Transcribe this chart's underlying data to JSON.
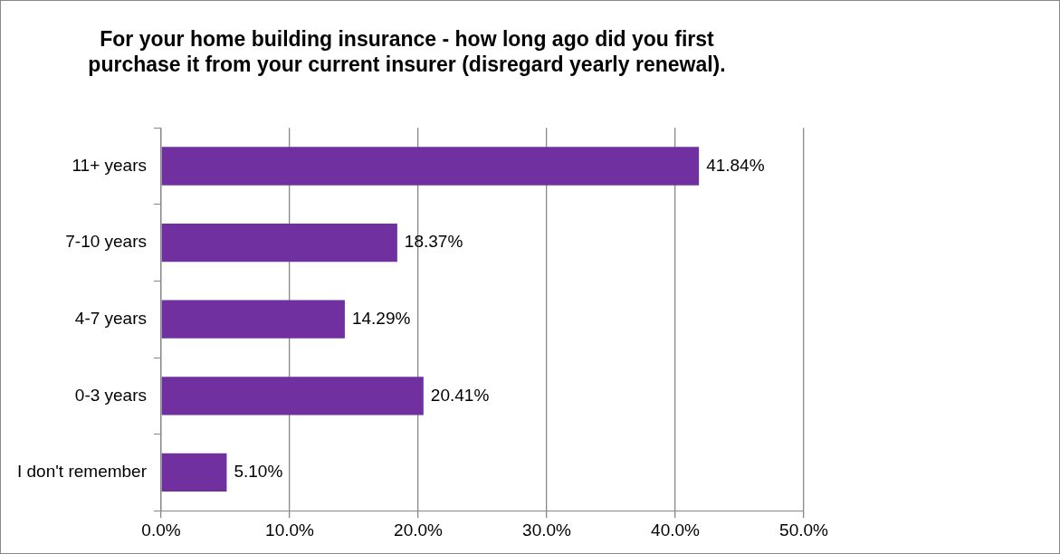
{
  "chart_data": {
    "type": "bar",
    "orientation": "horizontal",
    "title": "For your home building insurance - how long ago did you first purchase it from your current insurer (disregard yearly renewal).",
    "categories": [
      "11+ years",
      "7-10 years",
      "4-7 years",
      "0-3 years",
      "I don't remember"
    ],
    "values": [
      41.84,
      18.37,
      14.29,
      20.41,
      5.1
    ],
    "value_labels": [
      "41.84%",
      "18.37%",
      "14.29%",
      "20.41%",
      "5.10%"
    ],
    "color": "#7030a0",
    "xlim": [
      0,
      50
    ],
    "xticks": [
      {
        "value": 0,
        "label": "0.0%"
      },
      {
        "value": 10,
        "label": "10.0%"
      },
      {
        "value": 20,
        "label": "20.0%"
      },
      {
        "value": 30,
        "label": "30.0%"
      },
      {
        "value": 40,
        "label": "40.0%"
      },
      {
        "value": 50,
        "label": "50.0%"
      }
    ],
    "grid": "x",
    "legend": false
  }
}
